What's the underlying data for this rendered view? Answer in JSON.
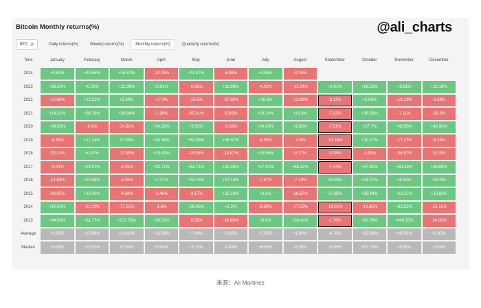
{
  "title": "Bitcoin Monthly returns(%)",
  "watermark": "@ali_charts",
  "asset_select": {
    "value": "BTC",
    "icon": "chevron-updown-icon"
  },
  "tabs": [
    {
      "label": "Daily returns(%)",
      "active": false
    },
    {
      "label": "Weekly returns(%)",
      "active": false
    },
    {
      "label": "Monthly returns(%)",
      "active": true
    },
    {
      "label": "Quarterly returns(%)",
      "active": false
    }
  ],
  "table": {
    "corner_label": "Time",
    "months": [
      "January",
      "February",
      "March",
      "April",
      "May",
      "June",
      "July",
      "August",
      "September",
      "October",
      "November",
      "December"
    ],
    "rows": [
      {
        "year": "2024",
        "values": [
          "+0.62%",
          "+43.55%",
          "+16.81%",
          "-14.76%",
          "+11.07%",
          "-6.96%",
          "+2.95%",
          "-9.36%",
          "",
          "",
          "",
          ""
        ]
      },
      {
        "year": "2023",
        "values": [
          "+39.63%",
          "+0.03%",
          "+22.96%",
          "+2.81%",
          "-6.98%",
          "+11.98%",
          "-4.02%",
          "-11.29%",
          "+3.91%",
          "+28.52%",
          "+8.81%",
          "+12.18%"
        ]
      },
      {
        "year": "2022",
        "values": [
          "-16.68%",
          "+12.21%",
          "+5.39%",
          "-17.3%",
          "-15.6%",
          "-37.28%",
          "+16.8%",
          "-13.88%",
          "-3.12%",
          "+5.56%",
          "-16.23%",
          "-3.59%"
        ]
      },
      {
        "year": "2021",
        "values": [
          "+14.51%",
          "+36.78%",
          "+29.84%",
          "-1.98%",
          "-35.31%",
          "-5.95%",
          "+18.19%",
          "+13.8%",
          "-7.03%",
          "+39.93%",
          "-7.11%",
          "-18.9%"
        ]
      },
      {
        "year": "2020",
        "values": [
          "+29.95%",
          "-8.6%",
          "-24.92%",
          "+34.26%",
          "+9.51%",
          "-3.18%",
          "+24.03%",
          "+2.83%",
          "-7.51%",
          "+27.7%",
          "+42.95%",
          "+46.92%"
        ]
      },
      {
        "year": "2019",
        "values": [
          "-8.58%",
          "+11.14%",
          "+7.05%",
          "+34.36%",
          "+52.38%",
          "+26.67%",
          "-6.59%",
          "-4.6%",
          "-13.38%",
          "+10.17%",
          "-17.27%",
          "-5.15%"
        ]
      },
      {
        "year": "2018",
        "values": [
          "-25.41%",
          "+0.47%",
          "-32.85%",
          "+33.43%",
          "-18.99%",
          "-14.62%",
          "+20.96%",
          "-9.27%",
          "-5.58%",
          "-3.83%",
          "-36.57%",
          "-5.15%"
        ]
      },
      {
        "year": "2017",
        "values": [
          "-0.04%",
          "+23.07%",
          "-9.05%",
          "+32.71%",
          "+52.71%",
          "+10.45%",
          "+17.92%",
          "+65.32%",
          "-7.44%",
          "+47.81%",
          "+53.48%",
          "+38.89%"
        ]
      },
      {
        "year": "2016",
        "values": [
          "-14.83%",
          "+20.08%",
          "-5.35%",
          "+7.27%",
          "+18.78%",
          "+27.14%",
          "-7.67%",
          "-7.49%",
          "+6.04%",
          "+14.71%",
          "+5.42%",
          "+30.8%"
        ]
      },
      {
        "year": "2015",
        "values": [
          "-33.05%",
          "+18.43%",
          "-4.38%",
          "-3.46%",
          "-3.17%",
          "+15.19%",
          "+8.2%",
          "-18.67%",
          "+2.35%",
          "+33.49%",
          "+19.27%",
          "+13.83%"
        ]
      },
      {
        "year": "2014",
        "values": [
          "+10.03%",
          "-31.03%",
          "-17.25%",
          "-1.6%",
          "+39.46%",
          "+2.2%",
          "-9.69%",
          "-17.55%",
          "-19.01%",
          "-12.95%",
          "+12.82%",
          "-15.11%"
        ]
      },
      {
        "year": "2013",
        "values": [
          "+44.05%",
          "+61.77%",
          "+172.76%",
          "+50.01%",
          "-8.56%",
          "-29.89%",
          "+9.6%",
          "+30.42%",
          "-1.76%",
          "+60.79%",
          "+449.35%",
          "-34.81%"
        ]
      }
    ],
    "summary": [
      {
        "label": "Average",
        "values": [
          "+3.35%",
          "+15.66%",
          "+13.62%",
          "+12.98%",
          "+7.94%",
          "-0.35%",
          "+7.56%",
          "+1.69%",
          "-4.78%",
          "+22.90%",
          "+46.81%",
          "+5.45%"
        ]
      },
      {
        "label": "Median",
        "values": [
          "+0.29%",
          "+15.32%",
          "+0.50%",
          "+5.04%",
          "+3.17%",
          "-0.49%",
          "+8.90%",
          "-8.38%",
          "-5.58%",
          "+27.70%",
          "+8.81%",
          "-3.59%"
        ]
      }
    ],
    "highlighted_column": "September",
    "highlighted_years": [
      "2022",
      "2021",
      "2020",
      "2019",
      "2018",
      "2017",
      "2014",
      "2013"
    ],
    "colors": {
      "positive": "#6cc782",
      "negative": "#e97474",
      "summary": "#b9b9b9",
      "highlight_border": "#111111"
    }
  },
  "caption": "来源：Ali Martinez"
}
